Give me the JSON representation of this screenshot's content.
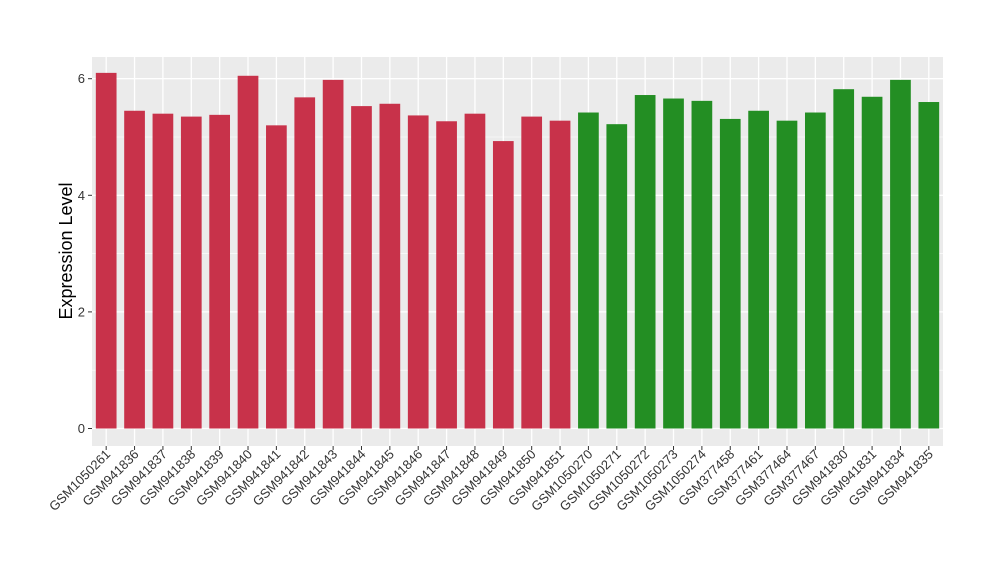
{
  "chart_data": {
    "type": "bar",
    "ylabel": "Expression Level",
    "xlabel": "",
    "ylim": [
      0,
      6.3
    ],
    "yticks": [
      0,
      2,
      4,
      6
    ],
    "grid": true,
    "panel_background": "#EBEBEB",
    "grid_color": "#FFFFFF",
    "group_colors": {
      "group1": "#C8324A",
      "group2": "#238E23"
    },
    "categories": [
      "GSM1050261",
      "GSM941836",
      "GSM941837",
      "GSM941838",
      "GSM941839",
      "GSM941840",
      "GSM941841",
      "GSM941842",
      "GSM941843",
      "GSM941844",
      "GSM941845",
      "GSM941846",
      "GSM941847",
      "GSM941848",
      "GSM941849",
      "GSM941850",
      "GSM941851",
      "GSM1050270",
      "GSM1050271",
      "GSM1050272",
      "GSM1050273",
      "GSM1050274",
      "GSM377458",
      "GSM377461",
      "GSM377464",
      "GSM377467",
      "GSM941830",
      "GSM941831",
      "GSM941834",
      "GSM941835"
    ],
    "values": [
      6.1,
      5.45,
      5.4,
      5.35,
      5.38,
      6.05,
      5.2,
      5.68,
      5.98,
      5.53,
      5.57,
      5.37,
      5.27,
      5.4,
      4.93,
      5.35,
      5.28,
      5.42,
      5.22,
      5.72,
      5.66,
      5.62,
      5.31,
      5.45,
      5.28,
      5.42,
      5.82,
      5.69,
      5.98,
      5.6
    ],
    "groups": [
      "group1",
      "group1",
      "group1",
      "group1",
      "group1",
      "group1",
      "group1",
      "group1",
      "group1",
      "group1",
      "group1",
      "group1",
      "group1",
      "group1",
      "group1",
      "group1",
      "group1",
      "group2",
      "group2",
      "group2",
      "group2",
      "group2",
      "group2",
      "group2",
      "group2",
      "group2",
      "group2",
      "group2",
      "group2",
      "group2"
    ]
  }
}
